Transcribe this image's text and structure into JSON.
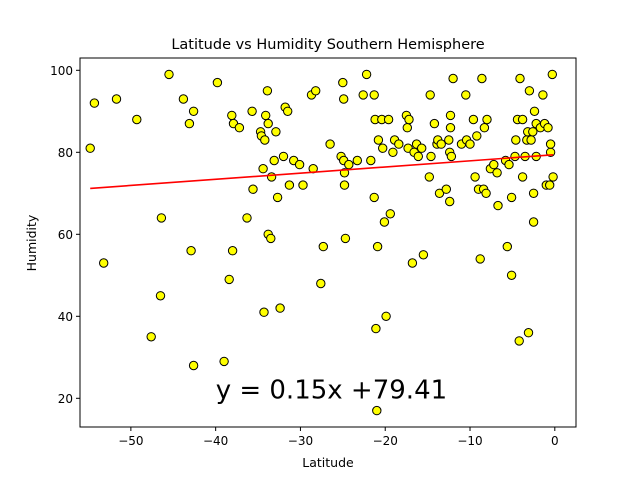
{
  "chart_data": {
    "type": "scatter",
    "title": "Latitude vs Humidity Southern Hemisphere",
    "xlabel": "Latitude",
    "ylabel": "Humidity",
    "xlim": [
      -56.0,
      2.5
    ],
    "ylim": [
      13.0,
      103.0
    ],
    "x_ticks": [
      -50,
      -40,
      -30,
      -20,
      -10,
      0
    ],
    "y_ticks": [
      20,
      40,
      60,
      80,
      100
    ],
    "grid": false,
    "marker_color": "#ffff00",
    "marker_edge_color": "#000000",
    "regression": {
      "slope": 0.15,
      "intercept": 79.41,
      "color": "#ff0000",
      "equation_label": "y = 0.15x +79.41",
      "label_anchor": [
        -40,
        20
      ]
    },
    "points": [
      [
        -54.8,
        81
      ],
      [
        -54.3,
        92
      ],
      [
        -53.2,
        53
      ],
      [
        -51.7,
        93
      ],
      [
        -49.3,
        88
      ],
      [
        -47.6,
        35
      ],
      [
        -46.4,
        64
      ],
      [
        -46.5,
        45
      ],
      [
        -45.5,
        99
      ],
      [
        -43.8,
        93
      ],
      [
        -43.1,
        87
      ],
      [
        -42.9,
        56
      ],
      [
        -42.6,
        90
      ],
      [
        -42.6,
        28
      ],
      [
        -39.8,
        97
      ],
      [
        -39.0,
        29
      ],
      [
        -38.4,
        49
      ],
      [
        -38.1,
        89
      ],
      [
        -38.0,
        56
      ],
      [
        -37.9,
        87
      ],
      [
        -37.2,
        86
      ],
      [
        -36.3,
        64
      ],
      [
        -35.7,
        90
      ],
      [
        -35.6,
        71
      ],
      [
        -34.7,
        85
      ],
      [
        -34.6,
        84
      ],
      [
        -34.4,
        76
      ],
      [
        -34.2,
        83
      ],
      [
        -34.1,
        89
      ],
      [
        -34.3,
        41
      ],
      [
        -33.9,
        95
      ],
      [
        -33.8,
        60
      ],
      [
        -33.8,
        87
      ],
      [
        -33.5,
        59
      ],
      [
        -33.4,
        74
      ],
      [
        -33.1,
        78
      ],
      [
        -32.9,
        85
      ],
      [
        -32.7,
        69
      ],
      [
        -32.4,
        42
      ],
      [
        -32.0,
        79
      ],
      [
        -31.8,
        91
      ],
      [
        -31.5,
        90
      ],
      [
        -31.3,
        72
      ],
      [
        -30.8,
        78
      ],
      [
        -30.1,
        77
      ],
      [
        -29.7,
        72
      ],
      [
        -28.7,
        94
      ],
      [
        -28.2,
        95
      ],
      [
        -28.5,
        76
      ],
      [
        -27.6,
        48
      ],
      [
        -27.3,
        57
      ],
      [
        -26.5,
        82
      ],
      [
        -25.2,
        79
      ],
      [
        -25.0,
        97
      ],
      [
        -24.9,
        93
      ],
      [
        -24.9,
        78
      ],
      [
        -24.8,
        75
      ],
      [
        -24.8,
        72
      ],
      [
        -24.7,
        59
      ],
      [
        -24.3,
        77
      ],
      [
        -23.3,
        78
      ],
      [
        -22.6,
        94
      ],
      [
        -22.2,
        99
      ],
      [
        -21.7,
        78
      ],
      [
        -21.3,
        94
      ],
      [
        -21.2,
        88
      ],
      [
        -21.3,
        69
      ],
      [
        -21.1,
        37
      ],
      [
        -20.9,
        57
      ],
      [
        -20.8,
        83
      ],
      [
        -20.4,
        88
      ],
      [
        -20.3,
        81
      ],
      [
        -20.1,
        63
      ],
      [
        -19.9,
        40
      ],
      [
        -19.6,
        88
      ],
      [
        -19.4,
        65
      ],
      [
        -19.1,
        80
      ],
      [
        -18.9,
        83
      ],
      [
        -18.4,
        82
      ],
      [
        -17.5,
        89
      ],
      [
        -17.4,
        86
      ],
      [
        -17.3,
        81
      ],
      [
        -17.2,
        88
      ],
      [
        -16.8,
        53
      ],
      [
        -16.6,
        80
      ],
      [
        -16.3,
        82
      ],
      [
        -16.1,
        79
      ],
      [
        -15.7,
        81
      ],
      [
        -15.5,
        55
      ],
      [
        -14.8,
        74
      ],
      [
        -14.6,
        79
      ],
      [
        -14.7,
        94
      ],
      [
        -14.2,
        87
      ],
      [
        -13.9,
        82
      ],
      [
        -13.8,
        83
      ],
      [
        -13.4,
        82
      ],
      [
        -13.6,
        70
      ],
      [
        -12.8,
        71
      ],
      [
        -12.4,
        68
      ],
      [
        -12.4,
        80
      ],
      [
        -12.2,
        79
      ],
      [
        -12.5,
        83
      ],
      [
        -12.3,
        86
      ],
      [
        -12.0,
        98
      ],
      [
        -12.3,
        89
      ],
      [
        -11.0,
        82
      ],
      [
        -10.5,
        94
      ],
      [
        -10.4,
        83
      ],
      [
        -10.0,
        82
      ],
      [
        -9.6,
        88
      ],
      [
        -9.4,
        74
      ],
      [
        -9.2,
        84
      ],
      [
        -9.0,
        71
      ],
      [
        -8.6,
        98
      ],
      [
        -8.8,
        54
      ],
      [
        -8.4,
        71
      ],
      [
        -8.3,
        86
      ],
      [
        -8.0,
        88
      ],
      [
        -8.1,
        70
      ],
      [
        -7.6,
        76
      ],
      [
        -7.2,
        77
      ],
      [
        -6.8,
        75
      ],
      [
        -6.7,
        67
      ],
      [
        -5.8,
        78
      ],
      [
        -5.6,
        57
      ],
      [
        -5.4,
        77
      ],
      [
        -5.1,
        69
      ],
      [
        -5.1,
        50
      ],
      [
        -4.7,
        79
      ],
      [
        -4.6,
        83
      ],
      [
        -4.4,
        88
      ],
      [
        -4.2,
        34
      ],
      [
        -4.1,
        98
      ],
      [
        -3.8,
        88
      ],
      [
        -3.8,
        74
      ],
      [
        -3.5,
        79
      ],
      [
        -3.3,
        83
      ],
      [
        -3.2,
        85
      ],
      [
        -3.1,
        36
      ],
      [
        -3.0,
        95
      ],
      [
        -2.8,
        83
      ],
      [
        -2.6,
        85
      ],
      [
        -2.5,
        63
      ],
      [
        -2.5,
        70
      ],
      [
        -2.4,
        90
      ],
      [
        -2.2,
        87
      ],
      [
        -2.2,
        79
      ],
      [
        -1.7,
        86
      ],
      [
        -1.4,
        94
      ],
      [
        -1.2,
        87
      ],
      [
        -1.0,
        72
      ],
      [
        -0.8,
        86
      ],
      [
        -0.6,
        72
      ],
      [
        -0.5,
        80
      ],
      [
        -0.5,
        82
      ],
      [
        -0.3,
        99
      ],
      [
        -0.2,
        74
      ],
      [
        -21.0,
        17
      ]
    ]
  }
}
